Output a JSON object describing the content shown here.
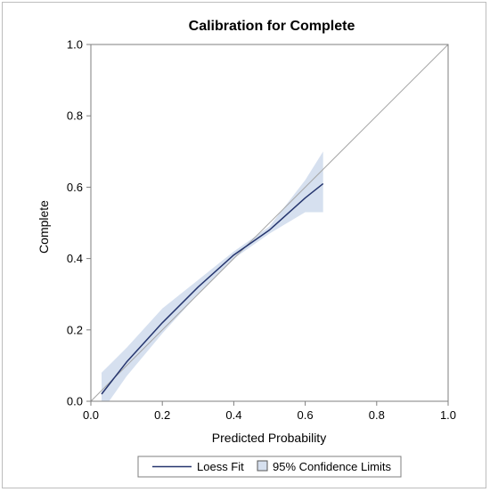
{
  "chart_data": {
    "type": "line",
    "title": "Calibration for Complete",
    "xlabel": "Predicted Probability",
    "ylabel": "Complete",
    "xlim": [
      0.0,
      1.0
    ],
    "ylim": [
      0.0,
      1.0
    ],
    "xticks": [
      "0.0",
      "0.2",
      "0.4",
      "0.6",
      "0.8",
      "1.0"
    ],
    "yticks": [
      "0.0",
      "0.2",
      "0.4",
      "0.6",
      "0.8",
      "1.0"
    ],
    "grid": false,
    "reference_line": [
      [
        0.0,
        0.0
      ],
      [
        1.0,
        1.0
      ]
    ],
    "series": [
      {
        "name": "Loess Fit",
        "x": [
          0.03,
          0.1,
          0.2,
          0.3,
          0.4,
          0.5,
          0.6,
          0.65
        ],
        "y": [
          0.02,
          0.11,
          0.22,
          0.32,
          0.41,
          0.48,
          0.57,
          0.61
        ],
        "lower": [
          -0.03,
          0.07,
          0.19,
          0.3,
          0.4,
          0.47,
          0.53,
          0.53
        ],
        "upper": [
          0.08,
          0.15,
          0.26,
          0.34,
          0.42,
          0.49,
          0.62,
          0.7
        ]
      }
    ],
    "legend": {
      "position": "bottom",
      "entries": [
        "Loess Fit",
        "95% Confidence Limits"
      ]
    },
    "colors": {
      "line": "#25356e",
      "band": "#d6e0ef",
      "reference": "#a6a6a6",
      "axis": "#7f7f7f"
    }
  }
}
